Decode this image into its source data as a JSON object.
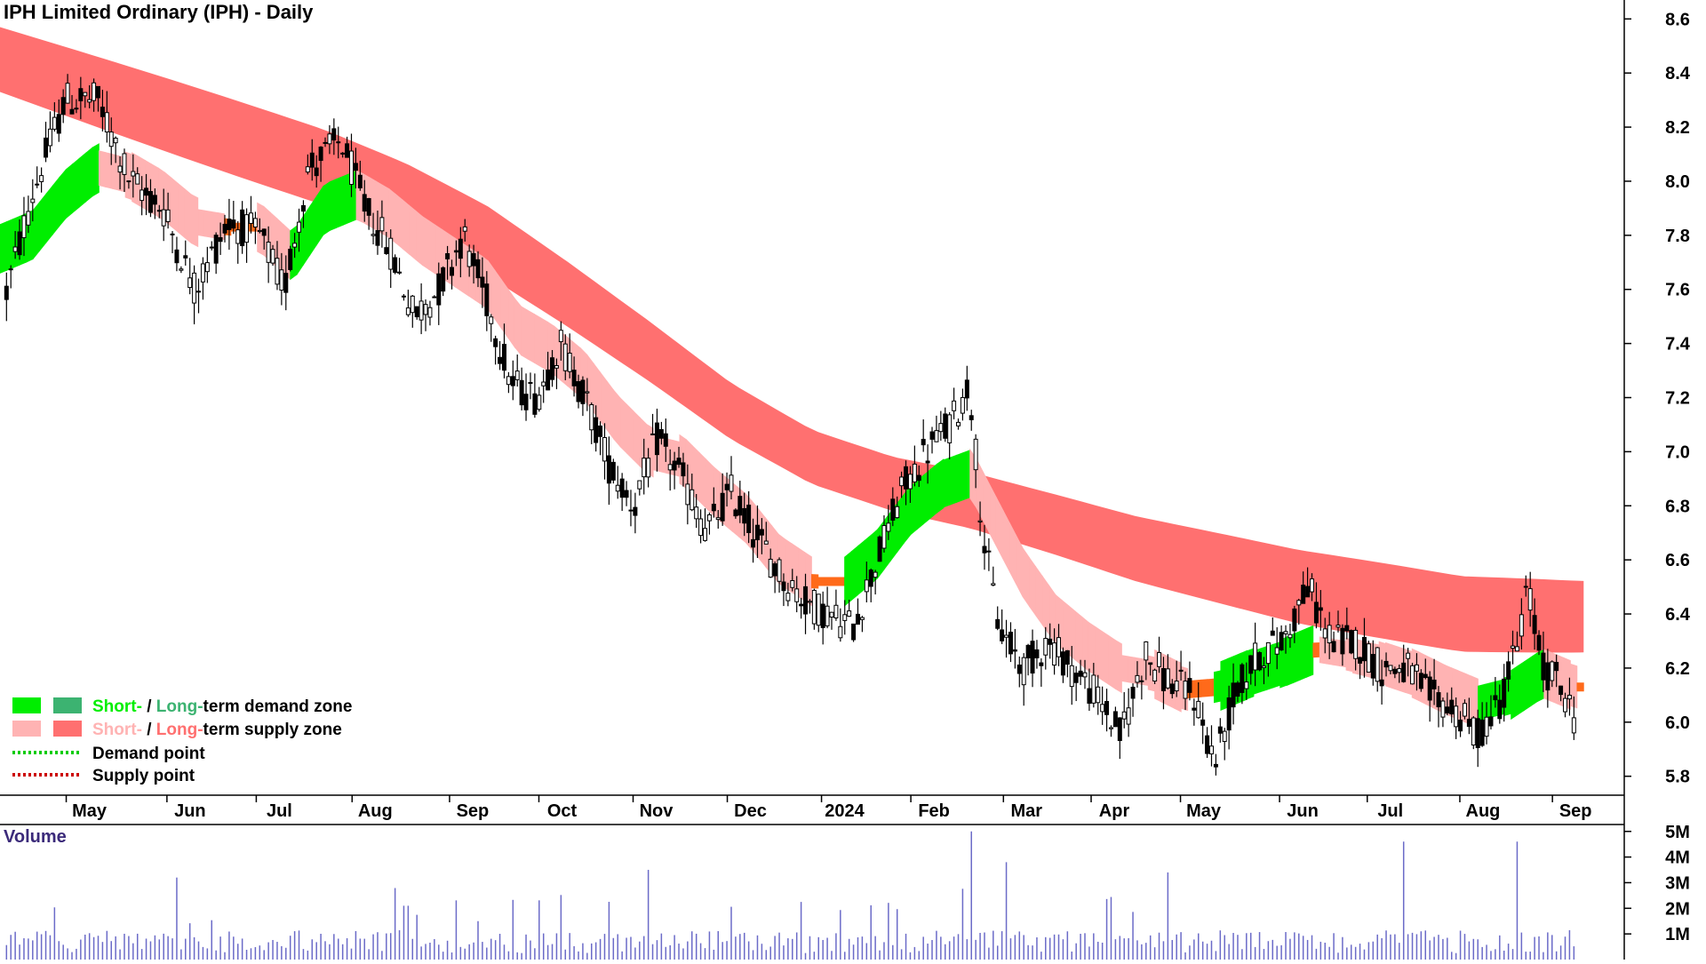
{
  "colors": {
    "short_demand": "#00ee00",
    "long_demand": "#3cb371",
    "short_supply": "#ffb3b3",
    "long_supply": "#ff7070",
    "supply_orange": "#ff6a1a",
    "demand_point": "#00cc00",
    "supply_point": "#cc0000",
    "candle": "#000000",
    "volume": "#6b6bc8",
    "volume_label": "#3b2a7a"
  },
  "chart_data": [
    {
      "type": "candlestick",
      "title": "IPH Limited Ordinary (IPH) - Daily",
      "y_axis_side": "right",
      "ylim": [
        5.73,
        8.67
      ],
      "y_ticks": [
        "5.8",
        "6.0",
        "6.2",
        "6.4",
        "6.6",
        "6.8",
        "7.0",
        "7.2",
        "7.4",
        "7.6",
        "7.8",
        "8.0",
        "8.2",
        "8.4",
        "8.6"
      ],
      "x_tick_labels": [
        "May",
        "Jun",
        "Jul",
        "Aug",
        "Sep",
        "Oct",
        "Nov",
        "Dec",
        "2024",
        "Feb",
        "Mar",
        "Apr",
        "May",
        "Jun",
        "Jul",
        "Aug",
        "Sep"
      ],
      "x_tick_positions": [
        0.055,
        0.117,
        0.172,
        0.231,
        0.291,
        0.346,
        0.404,
        0.462,
        0.52,
        0.575,
        0.632,
        0.686,
        0.741,
        0.802,
        0.856,
        0.913,
        0.97
      ],
      "price_path": [
        [
          0.0,
          7.5
        ],
        [
          0.02,
          7.95
        ],
        [
          0.04,
          8.3
        ],
        [
          0.06,
          8.3
        ],
        [
          0.08,
          8.0
        ],
        [
          0.1,
          7.9
        ],
        [
          0.12,
          7.6
        ],
        [
          0.14,
          7.85
        ],
        [
          0.16,
          7.8
        ],
        [
          0.175,
          7.6
        ],
        [
          0.19,
          8.05
        ],
        [
          0.21,
          8.15
        ],
        [
          0.225,
          7.9
        ],
        [
          0.24,
          7.75
        ],
        [
          0.255,
          7.5
        ],
        [
          0.27,
          7.6
        ],
        [
          0.285,
          7.8
        ],
        [
          0.3,
          7.55
        ],
        [
          0.315,
          7.25
        ],
        [
          0.33,
          7.2
        ],
        [
          0.345,
          7.4
        ],
        [
          0.36,
          7.2
        ],
        [
          0.375,
          6.95
        ],
        [
          0.39,
          6.8
        ],
        [
          0.405,
          7.05
        ],
        [
          0.42,
          6.9
        ],
        [
          0.435,
          6.7
        ],
        [
          0.45,
          6.85
        ],
        [
          0.465,
          6.7
        ],
        [
          0.48,
          6.55
        ],
        [
          0.495,
          6.45
        ],
        [
          0.51,
          6.4
        ],
        [
          0.525,
          6.35
        ],
        [
          0.54,
          6.6
        ],
        [
          0.555,
          6.85
        ],
        [
          0.57,
          7.0
        ],
        [
          0.585,
          7.1
        ],
        [
          0.597,
          7.25
        ],
        [
          0.605,
          6.7
        ],
        [
          0.615,
          6.35
        ],
        [
          0.63,
          6.2
        ],
        [
          0.645,
          6.3
        ],
        [
          0.66,
          6.2
        ],
        [
          0.675,
          6.1
        ],
        [
          0.69,
          5.95
        ],
        [
          0.705,
          6.25
        ],
        [
          0.72,
          6.15
        ],
        [
          0.735,
          6.1
        ],
        [
          0.748,
          5.85
        ],
        [
          0.76,
          6.1
        ],
        [
          0.775,
          6.25
        ],
        [
          0.79,
          6.3
        ],
        [
          0.805,
          6.5
        ],
        [
          0.82,
          6.3
        ],
        [
          0.835,
          6.3
        ],
        [
          0.85,
          6.2
        ],
        [
          0.865,
          6.2
        ],
        [
          0.88,
          6.1
        ],
        [
          0.895,
          6.05
        ],
        [
          0.91,
          5.95
        ],
        [
          0.925,
          6.1
        ],
        [
          0.935,
          6.3
        ],
        [
          0.94,
          6.5
        ],
        [
          0.95,
          6.2
        ],
        [
          0.96,
          6.15
        ],
        [
          0.97,
          6.0
        ]
      ],
      "short_band_mid": [
        [
          0.0,
          7.75
        ],
        [
          0.02,
          7.8
        ],
        [
          0.04,
          7.95
        ],
        [
          0.06,
          8.05
        ],
        [
          0.08,
          8.02
        ],
        [
          0.1,
          7.95
        ],
        [
          0.12,
          7.85
        ],
        [
          0.14,
          7.83
        ],
        [
          0.16,
          7.83
        ],
        [
          0.18,
          7.72
        ],
        [
          0.2,
          7.9
        ],
        [
          0.22,
          7.95
        ],
        [
          0.24,
          7.88
        ],
        [
          0.26,
          7.78
        ],
        [
          0.28,
          7.7
        ],
        [
          0.3,
          7.62
        ],
        [
          0.32,
          7.45
        ],
        [
          0.34,
          7.38
        ],
        [
          0.36,
          7.28
        ],
        [
          0.38,
          7.12
        ],
        [
          0.4,
          7.0
        ],
        [
          0.42,
          6.97
        ],
        [
          0.44,
          6.85
        ],
        [
          0.46,
          6.75
        ],
        [
          0.48,
          6.6
        ],
        [
          0.5,
          6.52
        ],
        [
          0.52,
          6.52
        ],
        [
          0.54,
          6.62
        ],
        [
          0.56,
          6.78
        ],
        [
          0.58,
          6.88
        ],
        [
          0.598,
          6.92
        ],
        [
          0.61,
          6.78
        ],
        [
          0.63,
          6.55
        ],
        [
          0.65,
          6.38
        ],
        [
          0.67,
          6.28
        ],
        [
          0.69,
          6.2
        ],
        [
          0.71,
          6.18
        ],
        [
          0.73,
          6.12
        ],
        [
          0.75,
          6.13
        ],
        [
          0.77,
          6.18
        ],
        [
          0.79,
          6.22
        ],
        [
          0.81,
          6.27
        ],
        [
          0.83,
          6.25
        ],
        [
          0.85,
          6.22
        ],
        [
          0.87,
          6.18
        ],
        [
          0.89,
          6.12
        ],
        [
          0.91,
          6.07
        ],
        [
          0.93,
          6.1
        ],
        [
          0.95,
          6.18
        ],
        [
          0.97,
          6.13
        ]
      ],
      "long_band_mid": [
        [
          0.0,
          8.45
        ],
        [
          0.05,
          8.35
        ],
        [
          0.1,
          8.25
        ],
        [
          0.15,
          8.15
        ],
        [
          0.2,
          8.05
        ],
        [
          0.25,
          7.93
        ],
        [
          0.3,
          7.78
        ],
        [
          0.35,
          7.58
        ],
        [
          0.4,
          7.37
        ],
        [
          0.45,
          7.15
        ],
        [
          0.5,
          6.98
        ],
        [
          0.55,
          6.88
        ],
        [
          0.598,
          6.82
        ],
        [
          0.65,
          6.73
        ],
        [
          0.7,
          6.64
        ],
        [
          0.75,
          6.57
        ],
        [
          0.8,
          6.5
        ],
        [
          0.85,
          6.45
        ],
        [
          0.9,
          6.4
        ],
        [
          0.97,
          6.39
        ]
      ],
      "volume_ylim": [
        0,
        5.2
      ],
      "volume_y_ticks": [
        "1M",
        "2M",
        "3M",
        "4M",
        "5M"
      ],
      "volume_path_peaks": [
        [
          0.11,
          3.2
        ],
        [
          0.25,
          2.1
        ],
        [
          0.4,
          3.5
        ],
        [
          0.597,
          5.0
        ],
        [
          0.62,
          3.8
        ],
        [
          0.72,
          3.4
        ],
        [
          0.865,
          4.6
        ],
        [
          0.935,
          4.6
        ]
      ],
      "volume_title": "Volume"
    }
  ],
  "legend": [
    {
      "short": "Short-",
      "sep": " / ",
      "long": "Long-",
      "rest": "term demand zone",
      "kind": "demand"
    },
    {
      "short": "Short-",
      "sep": " / ",
      "long": "Long-",
      "rest": "term supply zone",
      "kind": "supply"
    },
    {
      "label": "Demand point",
      "kind": "demand-point"
    },
    {
      "label": "Supply point",
      "kind": "supply-point"
    }
  ]
}
